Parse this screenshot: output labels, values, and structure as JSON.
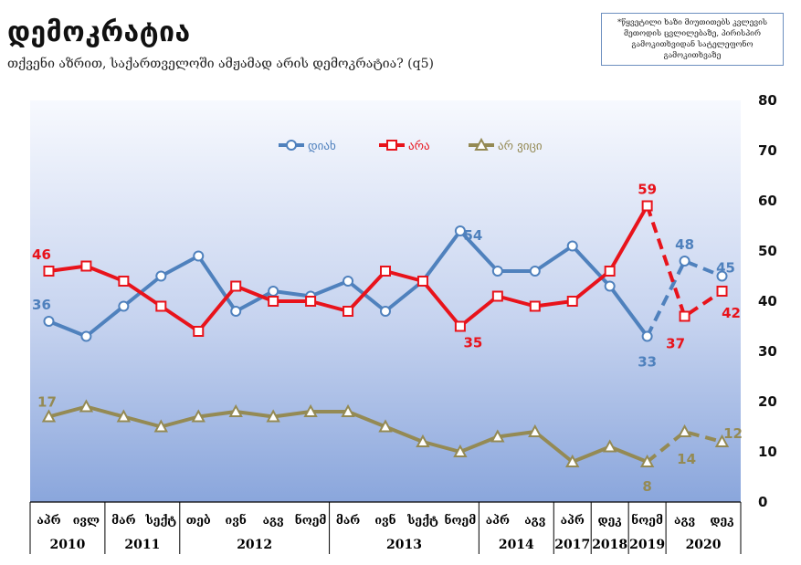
{
  "title": "დემოკრატია",
  "subtitle": "თქვენი აზრით, საქართველოში ამჟამად არის დემოკრატია? (q5)",
  "note": "*წყვეტილი ხაზი მიუთითებს კვლევის მეთოდის ცვლილებაზე, პირისპირ გამოკითხვიდან სატელეფონო გამოკითხვაზე",
  "chart_data": {
    "type": "line",
    "title": "დემოკრატია",
    "ylim": [
      0,
      80
    ],
    "yticks": [
      0,
      10,
      20,
      30,
      40,
      50,
      60,
      70,
      80
    ],
    "legend_position": "top-center",
    "categories": [
      "აპრ",
      "ივლ",
      "მარ",
      "სექტ",
      "თებ",
      "ივნ",
      "აგვ",
      "ნოემ",
      "მარ",
      "ივნ",
      "სექტ",
      "ნოემ",
      "აპრ",
      "აგვ",
      "აპრ",
      "დეკ",
      "ნოემ",
      "აგვ",
      "დეკ"
    ],
    "year_groups": [
      {
        "label": "2010",
        "span": 2
      },
      {
        "label": "2011",
        "span": 2
      },
      {
        "label": "2012",
        "span": 4
      },
      {
        "label": "2013",
        "span": 4
      },
      {
        "label": "2014",
        "span": 2
      },
      {
        "label": "2017",
        "span": 1
      },
      {
        "label": "2018",
        "span": 1
      },
      {
        "label": "2019",
        "span": 1
      },
      {
        "label": "2020",
        "span": 2
      }
    ],
    "dashed_from_index": 16,
    "series": [
      {
        "name": "დიახ",
        "color": "#4f81bd",
        "marker": "circle",
        "values": [
          36,
          33,
          39,
          45,
          49,
          38,
          42,
          41,
          44,
          38,
          44,
          54,
          46,
          46,
          51,
          43,
          33,
          48,
          45
        ],
        "labeled_indices": [
          0,
          11,
          16,
          17,
          18
        ]
      },
      {
        "name": "არა",
        "color": "#e8131b",
        "marker": "square",
        "values": [
          46,
          47,
          44,
          39,
          34,
          43,
          40,
          40,
          38,
          46,
          44,
          35,
          41,
          39,
          40,
          46,
          59,
          37,
          42
        ],
        "labeled_indices": [
          0,
          11,
          16,
          17,
          18
        ]
      },
      {
        "name": "არ ვიცი",
        "color": "#948a54",
        "marker": "triangle",
        "values": [
          17,
          19,
          17,
          15,
          17,
          18,
          17,
          18,
          18,
          15,
          12,
          10,
          13,
          14,
          8,
          11,
          8,
          14,
          12
        ],
        "labeled_indices": [
          0,
          16,
          17,
          18
        ]
      }
    ]
  }
}
